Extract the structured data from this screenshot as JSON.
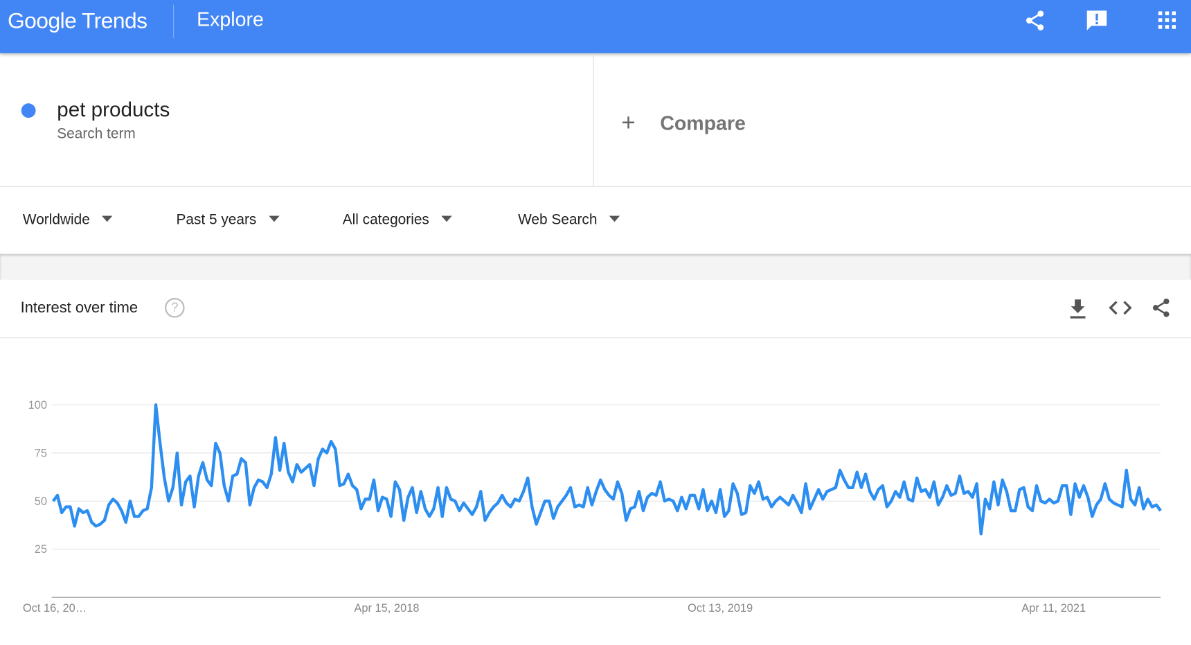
{
  "header": {
    "logo": "Google Trends",
    "page": "Explore"
  },
  "search": {
    "term": "pet products",
    "subtitle": "Search term",
    "compare": "Compare"
  },
  "filters": [
    "Worldwide",
    "Past 5 years",
    "All categories",
    "Web Search"
  ],
  "chart_data": {
    "type": "line",
    "title": "Interest over time",
    "color": "#2c8ef0",
    "grid": true,
    "ylim": [
      0,
      100
    ],
    "yticks": [
      25,
      50,
      75,
      100
    ],
    "categories": [
      "Oct 16, 20…",
      null,
      null,
      null,
      null,
      null,
      null,
      null,
      null,
      null,
      null,
      null,
      null,
      null,
      null,
      null,
      null,
      null,
      null,
      null,
      null,
      null,
      null,
      null,
      null,
      null,
      null,
      null,
      null,
      null,
      null,
      null,
      null,
      null,
      null,
      null,
      null,
      null,
      null,
      null,
      null,
      null,
      null,
      null,
      null,
      null,
      null,
      null,
      null,
      null,
      null,
      null,
      null,
      null,
      null,
      null,
      null,
      null,
      null,
      null,
      null,
      null,
      null,
      null,
      null,
      null,
      null,
      null,
      null,
      null,
      null,
      null,
      null,
      null,
      null,
      null,
      null,
      null,
      "Apr 15, 2018",
      null,
      null,
      null,
      null,
      null,
      null,
      null,
      null,
      null,
      null,
      null,
      null,
      null,
      null,
      null,
      null,
      null,
      null,
      null,
      null,
      null,
      null,
      null,
      null,
      null,
      null,
      null,
      null,
      null,
      null,
      null,
      null,
      null,
      null,
      null,
      null,
      null,
      null,
      null,
      null,
      null,
      null,
      null,
      null,
      null,
      null,
      null,
      null,
      null,
      null,
      null,
      null,
      null,
      null,
      null,
      null,
      null,
      null,
      null,
      null,
      null,
      null,
      null,
      null,
      null,
      null,
      null,
      null,
      null,
      null,
      null,
      null,
      null,
      null,
      null,
      null,
      null,
      "Oct 13, 2019",
      null,
      null,
      null,
      null,
      null,
      null,
      null,
      null,
      null,
      null,
      null,
      null,
      null,
      null,
      null,
      null,
      null,
      null,
      null,
      null,
      null,
      null,
      null,
      null,
      null,
      null,
      null,
      null,
      null,
      null,
      null,
      null,
      null,
      null,
      null,
      null,
      null,
      null,
      null,
      null,
      null,
      null,
      null,
      null,
      null,
      null,
      null,
      null,
      null,
      null,
      null,
      null,
      null,
      null,
      null,
      null,
      null,
      null,
      null,
      null,
      null,
      null,
      null,
      null,
      null,
      null,
      null,
      null,
      null,
      null,
      null,
      null,
      null,
      null,
      null,
      null,
      null,
      "Apr 11, 2021",
      null,
      null,
      null,
      null,
      null,
      null,
      null,
      null,
      null,
      null,
      null,
      null,
      null,
      null,
      null,
      null,
      null,
      null,
      null,
      null,
      null,
      null,
      null,
      null,
      null
    ],
    "values": [
      50,
      53,
      44,
      47,
      47,
      37,
      46,
      44,
      45,
      39,
      37,
      38,
      40,
      48,
      51,
      49,
      45,
      39,
      50,
      42,
      42,
      45,
      46,
      57,
      100,
      80,
      62,
      50,
      57,
      75,
      48,
      60,
      63,
      47,
      63,
      70,
      61,
      58,
      80,
      75,
      58,
      50,
      63,
      64,
      72,
      70,
      48,
      57,
      61,
      60,
      57,
      64,
      83,
      66,
      80,
      65,
      60,
      69,
      65,
      67,
      69,
      58,
      72,
      77,
      75,
      81,
      77,
      58,
      59,
      64,
      58,
      56,
      46,
      51,
      51,
      61,
      45,
      52,
      51,
      42,
      60,
      56,
      40,
      52,
      57,
      44,
      55,
      46,
      42,
      46,
      57,
      42,
      57,
      51,
      50,
      45,
      49,
      46,
      43,
      47,
      55,
      40,
      44,
      47,
      49,
      53,
      49,
      47,
      51,
      50,
      55,
      62,
      47,
      38,
      44,
      50,
      50,
      41,
      47,
      50,
      53,
      57,
      47,
      48,
      47,
      57,
      48,
      55,
      61,
      56,
      53,
      51,
      60,
      54,
      40,
      46,
      47,
      55,
      45,
      52,
      54,
      53,
      60,
      50,
      51,
      50,
      45,
      52,
      46,
      53,
      53,
      46,
      56,
      45,
      50,
      44,
      56,
      42,
      45,
      59,
      54,
      43,
      44,
      58,
      54,
      60,
      51,
      52,
      47,
      50,
      52,
      50,
      48,
      53,
      49,
      44,
      59,
      46,
      51,
      56,
      51,
      55,
      56,
      57,
      66,
      61,
      57,
      57,
      65,
      57,
      64,
      55,
      51,
      56,
      58,
      47,
      50,
      55,
      52,
      60,
      51,
      50,
      62,
      55,
      56,
      52,
      60,
      48,
      52,
      58,
      53,
      54,
      63,
      54,
      55,
      52,
      59,
      33,
      51,
      46,
      60,
      48,
      61,
      55,
      45,
      45,
      56,
      57,
      47,
      45,
      58,
      50,
      49,
      51,
      49,
      50,
      58,
      58,
      43,
      59,
      52,
      58,
      52,
      42,
      48,
      51,
      59,
      51,
      49,
      48,
      47,
      66,
      51,
      48,
      57,
      46,
      51,
      47,
      48,
      45
    ]
  }
}
